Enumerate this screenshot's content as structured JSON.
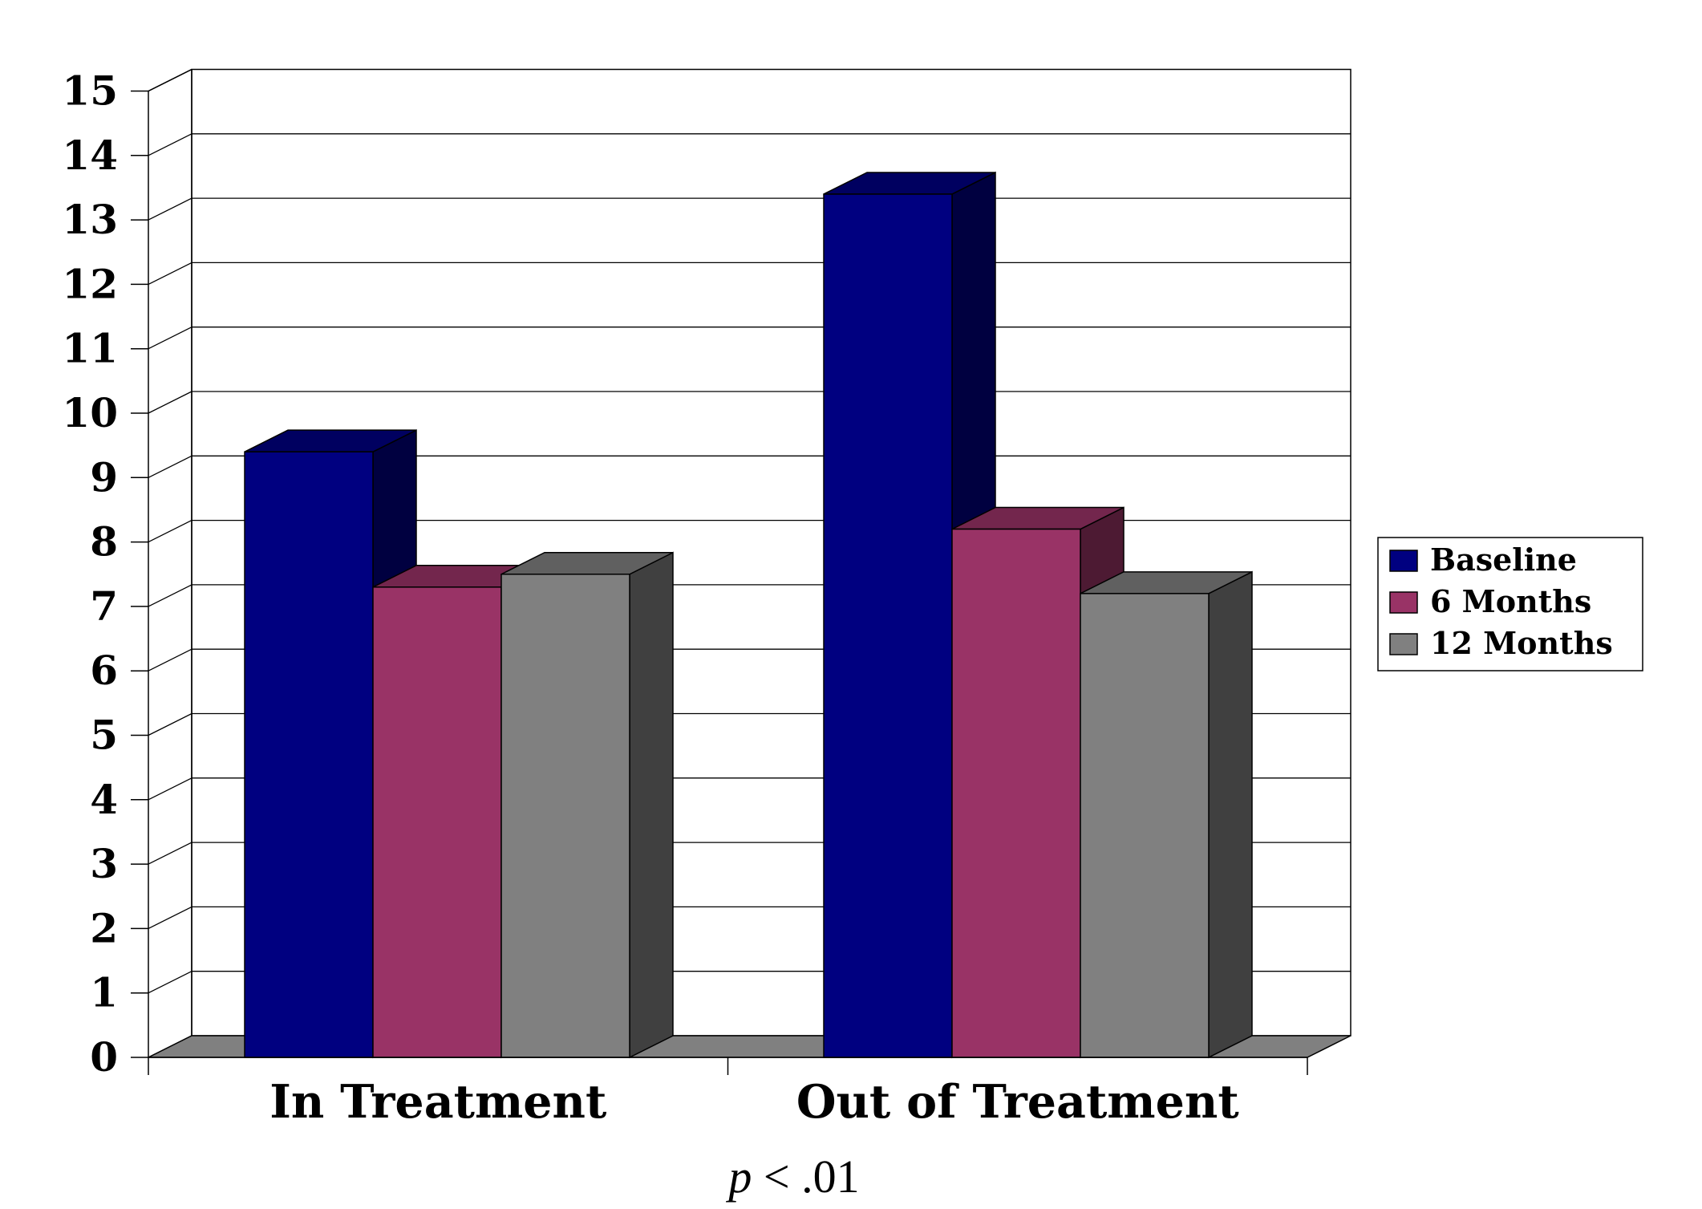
{
  "chart_data": {
    "type": "bar",
    "title": "",
    "xlabel": "",
    "ylabel": "",
    "ylim": [
      0,
      15
    ],
    "yticks": [
      0,
      1,
      2,
      3,
      4,
      5,
      6,
      7,
      8,
      9,
      10,
      11,
      12,
      13,
      14,
      15
    ],
    "grid": true,
    "legend_position": "right",
    "categories": [
      "In Treatment",
      "Out of Treatment"
    ],
    "series": [
      {
        "name": "Baseline",
        "values": [
          9.4,
          13.4
        ],
        "color": "#000080"
      },
      {
        "name": "6 Months",
        "values": [
          7.3,
          8.2
        ],
        "color": "#993366"
      },
      {
        "name": "12 Months",
        "values": [
          7.5,
          7.2
        ],
        "color": "#808080"
      }
    ],
    "annotation": {
      "italic": "p",
      "text": " < .01"
    }
  }
}
